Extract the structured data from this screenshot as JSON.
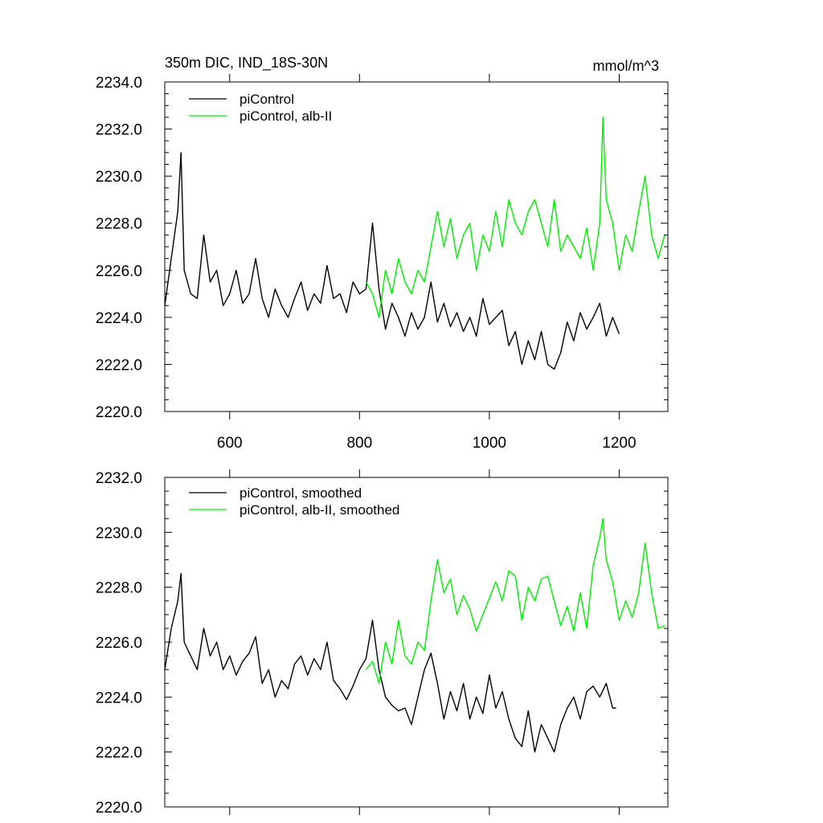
{
  "chart_data": [
    {
      "type": "line",
      "title": "350m DIC, IND_18S-30N",
      "units": "mmol/m^3",
      "xlim": [
        500,
        1275
      ],
      "ylim": [
        2220.0,
        2234.0
      ],
      "xticks": [
        600,
        800,
        1000,
        1200
      ],
      "xtick_labels": [
        "600",
        "800",
        "1000",
        "1200"
      ],
      "yticks": [
        2220,
        2222,
        2224,
        2226,
        2228,
        2230,
        2232,
        2234
      ],
      "ytick_labels": [
        "2220.0",
        "2222.0",
        "2224.0",
        "2226.0",
        "2228.0",
        "2230.0",
        "2232.0",
        "2234.0"
      ],
      "legend_position": "top-left",
      "series": [
        {
          "name": "piControl",
          "color": "#000000",
          "x": [
            500,
            510,
            520,
            525,
            530,
            540,
            550,
            560,
            570,
            580,
            590,
            600,
            610,
            620,
            630,
            640,
            650,
            660,
            670,
            680,
            690,
            700,
            710,
            720,
            730,
            740,
            750,
            760,
            770,
            780,
            790,
            800,
            810,
            820,
            830,
            840,
            850,
            860,
            870,
            880,
            890,
            900,
            910,
            920,
            930,
            940,
            950,
            960,
            970,
            980,
            990,
            1000,
            1010,
            1020,
            1030,
            1040,
            1050,
            1060,
            1070,
            1080,
            1090,
            1100,
            1110,
            1120,
            1130,
            1140,
            1150,
            1160,
            1170,
            1180,
            1190,
            1200
          ],
          "values": [
            2224.5,
            2226.5,
            2228.5,
            2231.0,
            2226.0,
            2225.0,
            2224.8,
            2227.5,
            2225.5,
            2226.0,
            2224.5,
            2225.0,
            2226.0,
            2224.6,
            2225.0,
            2226.5,
            2224.8,
            2224.0,
            2225.2,
            2224.5,
            2224.0,
            2224.8,
            2225.5,
            2224.3,
            2225.0,
            2224.6,
            2226.2,
            2224.8,
            2225.0,
            2224.2,
            2225.5,
            2225.0,
            2225.2,
            2228.0,
            2225.2,
            2223.5,
            2224.6,
            2224.0,
            2223.2,
            2224.2,
            2223.5,
            2224.0,
            2225.5,
            2223.8,
            2224.6,
            2223.6,
            2224.2,
            2223.4,
            2224.0,
            2223.2,
            2224.8,
            2223.7,
            2224.0,
            2224.3,
            2222.8,
            2223.4,
            2222.0,
            2223.0,
            2222.2,
            2223.4,
            2222.0,
            2221.8,
            2222.5,
            2223.8,
            2223.0,
            2224.2,
            2223.5,
            2224.0,
            2224.6,
            2223.2,
            2224.0,
            2223.3
          ]
        },
        {
          "name": "piControl, alb-II",
          "color": "#00ee00",
          "x": [
            810,
            820,
            830,
            840,
            850,
            860,
            870,
            880,
            890,
            900,
            910,
            920,
            930,
            940,
            950,
            960,
            970,
            980,
            990,
            1000,
            1010,
            1020,
            1030,
            1040,
            1050,
            1060,
            1070,
            1080,
            1090,
            1100,
            1110,
            1120,
            1130,
            1140,
            1150,
            1160,
            1170,
            1175,
            1180,
            1190,
            1200,
            1210,
            1220,
            1230,
            1240,
            1250,
            1260,
            1270
          ],
          "values": [
            2225.5,
            2225.0,
            2224.0,
            2226.0,
            2225.0,
            2226.5,
            2225.5,
            2225.0,
            2226.0,
            2225.5,
            2227.0,
            2228.5,
            2227.0,
            2228.2,
            2226.5,
            2227.5,
            2228.0,
            2226.0,
            2227.5,
            2226.8,
            2228.5,
            2227.0,
            2229.0,
            2228.0,
            2227.5,
            2228.5,
            2229.0,
            2228.0,
            2227.0,
            2229.0,
            2226.8,
            2227.5,
            2227.0,
            2226.5,
            2227.8,
            2226.0,
            2228.0,
            2232.5,
            2229.0,
            2228.0,
            2226.0,
            2227.5,
            2226.8,
            2228.5,
            2230.0,
            2227.5,
            2226.5,
            2227.5
          ]
        }
      ]
    },
    {
      "type": "line",
      "title": "",
      "xlim": [
        500,
        1275
      ],
      "ylim": [
        2220.0,
        2232.0
      ],
      "xticks": [
        600,
        800,
        1000,
        1200
      ],
      "yticks": [
        2220,
        2222,
        2224,
        2226,
        2228,
        2230,
        2232
      ],
      "ytick_labels": [
        "2220.0",
        "2222.0",
        "2224.0",
        "2226.0",
        "2228.0",
        "2230.0",
        "2232.0"
      ],
      "legend_position": "top-left",
      "series": [
        {
          "name": "piControl, smoothed",
          "color": "#000000",
          "x": [
            500,
            510,
            520,
            525,
            530,
            540,
            550,
            560,
            570,
            580,
            590,
            600,
            610,
            620,
            630,
            640,
            650,
            660,
            670,
            680,
            690,
            700,
            710,
            720,
            730,
            740,
            750,
            760,
            770,
            780,
            790,
            800,
            810,
            820,
            830,
            840,
            850,
            860,
            870,
            880,
            890,
            900,
            910,
            920,
            930,
            940,
            950,
            960,
            970,
            980,
            990,
            1000,
            1010,
            1020,
            1030,
            1040,
            1050,
            1060,
            1070,
            1080,
            1090,
            1100,
            1110,
            1120,
            1130,
            1140,
            1150,
            1160,
            1170,
            1180,
            1190,
            1195
          ],
          "values": [
            2225.0,
            2226.5,
            2227.5,
            2228.5,
            2226.0,
            2225.5,
            2225.0,
            2226.5,
            2225.5,
            2226.0,
            2225.0,
            2225.5,
            2224.8,
            2225.3,
            2225.6,
            2226.2,
            2224.5,
            2225.0,
            2224.0,
            2224.6,
            2224.3,
            2225.2,
            2225.5,
            2224.8,
            2225.4,
            2225.0,
            2226.0,
            2224.6,
            2224.3,
            2223.9,
            2224.4,
            2225.0,
            2225.4,
            2226.8,
            2225.0,
            2224.0,
            2223.7,
            2223.5,
            2223.6,
            2223.0,
            2224.0,
            2225.0,
            2225.6,
            2224.5,
            2223.2,
            2224.2,
            2223.5,
            2224.5,
            2223.2,
            2224.0,
            2223.4,
            2224.8,
            2223.6,
            2224.2,
            2223.2,
            2222.5,
            2222.2,
            2223.5,
            2222.0,
            2223.0,
            2222.5,
            2222.0,
            2223.0,
            2223.6,
            2224.0,
            2223.2,
            2224.2,
            2224.4,
            2224.0,
            2224.5,
            2223.6,
            2223.6
          ]
        },
        {
          "name": "piControl, alb-II, smoothed",
          "color": "#00ee00",
          "x": [
            810,
            820,
            830,
            840,
            850,
            860,
            870,
            880,
            890,
            900,
            910,
            920,
            930,
            940,
            950,
            960,
            970,
            980,
            990,
            1000,
            1010,
            1020,
            1030,
            1040,
            1050,
            1060,
            1070,
            1080,
            1090,
            1100,
            1110,
            1120,
            1130,
            1140,
            1150,
            1160,
            1170,
            1175,
            1180,
            1190,
            1200,
            1210,
            1220,
            1230,
            1240,
            1250,
            1260,
            1270
          ],
          "values": [
            2225.0,
            2225.3,
            2224.5,
            2226.0,
            2225.2,
            2226.8,
            2225.5,
            2225.2,
            2226.0,
            2225.7,
            2227.5,
            2229.0,
            2227.8,
            2228.3,
            2227.0,
            2227.7,
            2227.2,
            2226.4,
            2227.0,
            2227.6,
            2228.2,
            2227.5,
            2228.6,
            2228.4,
            2226.8,
            2228.0,
            2227.5,
            2228.3,
            2228.4,
            2227.5,
            2226.6,
            2227.3,
            2226.4,
            2227.8,
            2226.5,
            2228.8,
            2229.8,
            2230.5,
            2229.0,
            2228.2,
            2226.8,
            2227.5,
            2226.9,
            2227.8,
            2229.6,
            2227.8,
            2226.5,
            2226.6
          ]
        }
      ]
    }
  ]
}
